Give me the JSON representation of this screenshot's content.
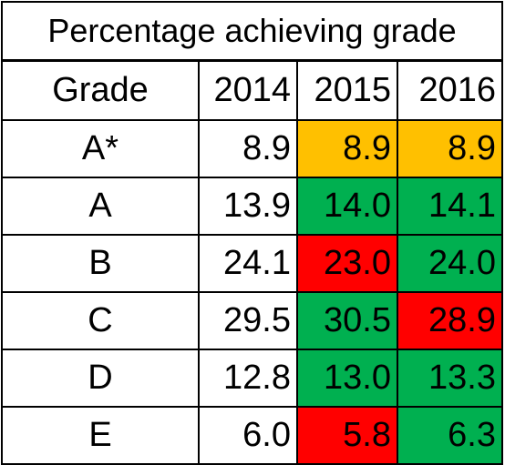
{
  "chart_data": {
    "type": "table",
    "title": "Percentage achieving grade",
    "columns": [
      "Grade",
      "2014",
      "2015",
      "2016"
    ],
    "rows": [
      {
        "grade": "A*",
        "values": [
          "8.9",
          "8.9",
          "8.9"
        ],
        "status": [
          "none",
          "same",
          "same"
        ]
      },
      {
        "grade": "A",
        "values": [
          "13.9",
          "14.0",
          "14.1"
        ],
        "status": [
          "none",
          "up",
          "up"
        ]
      },
      {
        "grade": "B",
        "values": [
          "24.1",
          "23.0",
          "24.0"
        ],
        "status": [
          "none",
          "down",
          "up"
        ]
      },
      {
        "grade": "C",
        "values": [
          "29.5",
          "30.5",
          "28.9"
        ],
        "status": [
          "none",
          "up",
          "down"
        ]
      },
      {
        "grade": "D",
        "values": [
          "12.8",
          "13.0",
          "13.3"
        ],
        "status": [
          "none",
          "up",
          "up"
        ]
      },
      {
        "grade": "E",
        "values": [
          "6.0",
          "5.8",
          "6.3"
        ],
        "status": [
          "none",
          "down",
          "up"
        ]
      }
    ],
    "colors": {
      "up": "#00b050",
      "down": "#ff0000",
      "same": "#ffc000",
      "none": "#ffffff"
    }
  }
}
